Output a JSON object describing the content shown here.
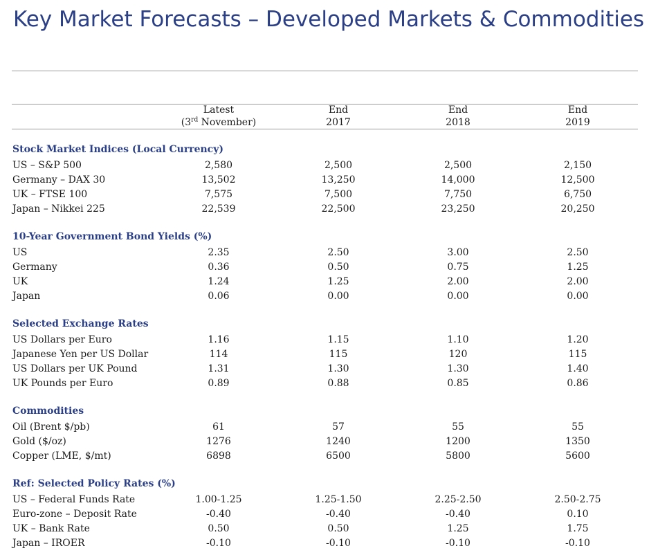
{
  "title": "Key Market Forecasts – Developed Markets & Commodities",
  "columns": [
    {
      "line1": "Latest",
      "line2_prefix": "(3",
      "line2_sup": "rd",
      "line2_suffix": " November)"
    },
    {
      "line1": "End",
      "line2": "2017"
    },
    {
      "line1": "End",
      "line2": "2018"
    },
    {
      "line1": "End",
      "line2": "2019"
    }
  ],
  "sections": [
    {
      "heading": "Stock Market Indices (Local Currency)",
      "rows": [
        {
          "label": "US – S&P 500",
          "values": [
            "2,580",
            "2,500",
            "2,500",
            "2,150"
          ]
        },
        {
          "label": "Germany – DAX 30",
          "values": [
            "13,502",
            "13,250",
            "14,000",
            "12,500"
          ]
        },
        {
          "label": "UK – FTSE 100",
          "values": [
            "7,575",
            "7,500",
            "7,750",
            "6,750"
          ]
        },
        {
          "label": "Japan – Nikkei 225",
          "values": [
            "22,539",
            "22,500",
            "23,250",
            "20,250"
          ]
        }
      ]
    },
    {
      "heading": "10-Year Government Bond Yields (%)",
      "rows": [
        {
          "label": "US",
          "values": [
            "2.35",
            "2.50",
            "3.00",
            "2.50"
          ]
        },
        {
          "label": "Germany",
          "values": [
            "0.36",
            "0.50",
            "0.75",
            "1.25"
          ]
        },
        {
          "label": "UK",
          "values": [
            "1.24",
            "1.25",
            "2.00",
            "2.00"
          ]
        },
        {
          "label": "Japan",
          "values": [
            "0.06",
            "0.00",
            "0.00",
            "0.00"
          ]
        }
      ]
    },
    {
      "heading": "Selected Exchange Rates",
      "rows": [
        {
          "label": "US Dollars per Euro",
          "values": [
            "1.16",
            "1.15",
            "1.10",
            "1.20"
          ]
        },
        {
          "label": "Japanese Yen per US Dollar",
          "values": [
            "114",
            "115",
            "120",
            "115"
          ]
        },
        {
          "label": "US Dollars per UK Pound",
          "values": [
            "1.31",
            "1.30",
            "1.30",
            "1.40"
          ]
        },
        {
          "label": "UK Pounds per Euro",
          "values": [
            "0.89",
            "0.88",
            "0.85",
            "0.86"
          ]
        }
      ]
    },
    {
      "heading": "Commodities",
      "rows": [
        {
          "label": "Oil (Brent $/pb)",
          "values": [
            "61",
            "57",
            "55",
            "55"
          ]
        },
        {
          "label": "Gold ($/oz)",
          "values": [
            "1276",
            "1240",
            "1200",
            "1350"
          ]
        },
        {
          "label": "Copper (LME, $/mt)",
          "values": [
            "6898",
            "6500",
            "5800",
            "5600"
          ]
        }
      ]
    },
    {
      "heading": "Ref: Selected Policy Rates (%)",
      "rows": [
        {
          "label": "US – Federal Funds Rate",
          "values": [
            "1.00-1.25",
            "1.25-1.50",
            "2.25-2.50",
            "2.50-2.75"
          ]
        },
        {
          "label": "Euro-zone – Deposit Rate",
          "values": [
            "-0.40",
            "-0.40",
            "-0.40",
            "0.10"
          ]
        },
        {
          "label": "UK – Bank Rate",
          "values": [
            "0.50",
            "0.50",
            "1.25",
            "1.75"
          ]
        },
        {
          "label": "Japan – IROER",
          "values": [
            "-0.10",
            "-0.10",
            "-0.10",
            "-0.10"
          ]
        }
      ]
    }
  ]
}
